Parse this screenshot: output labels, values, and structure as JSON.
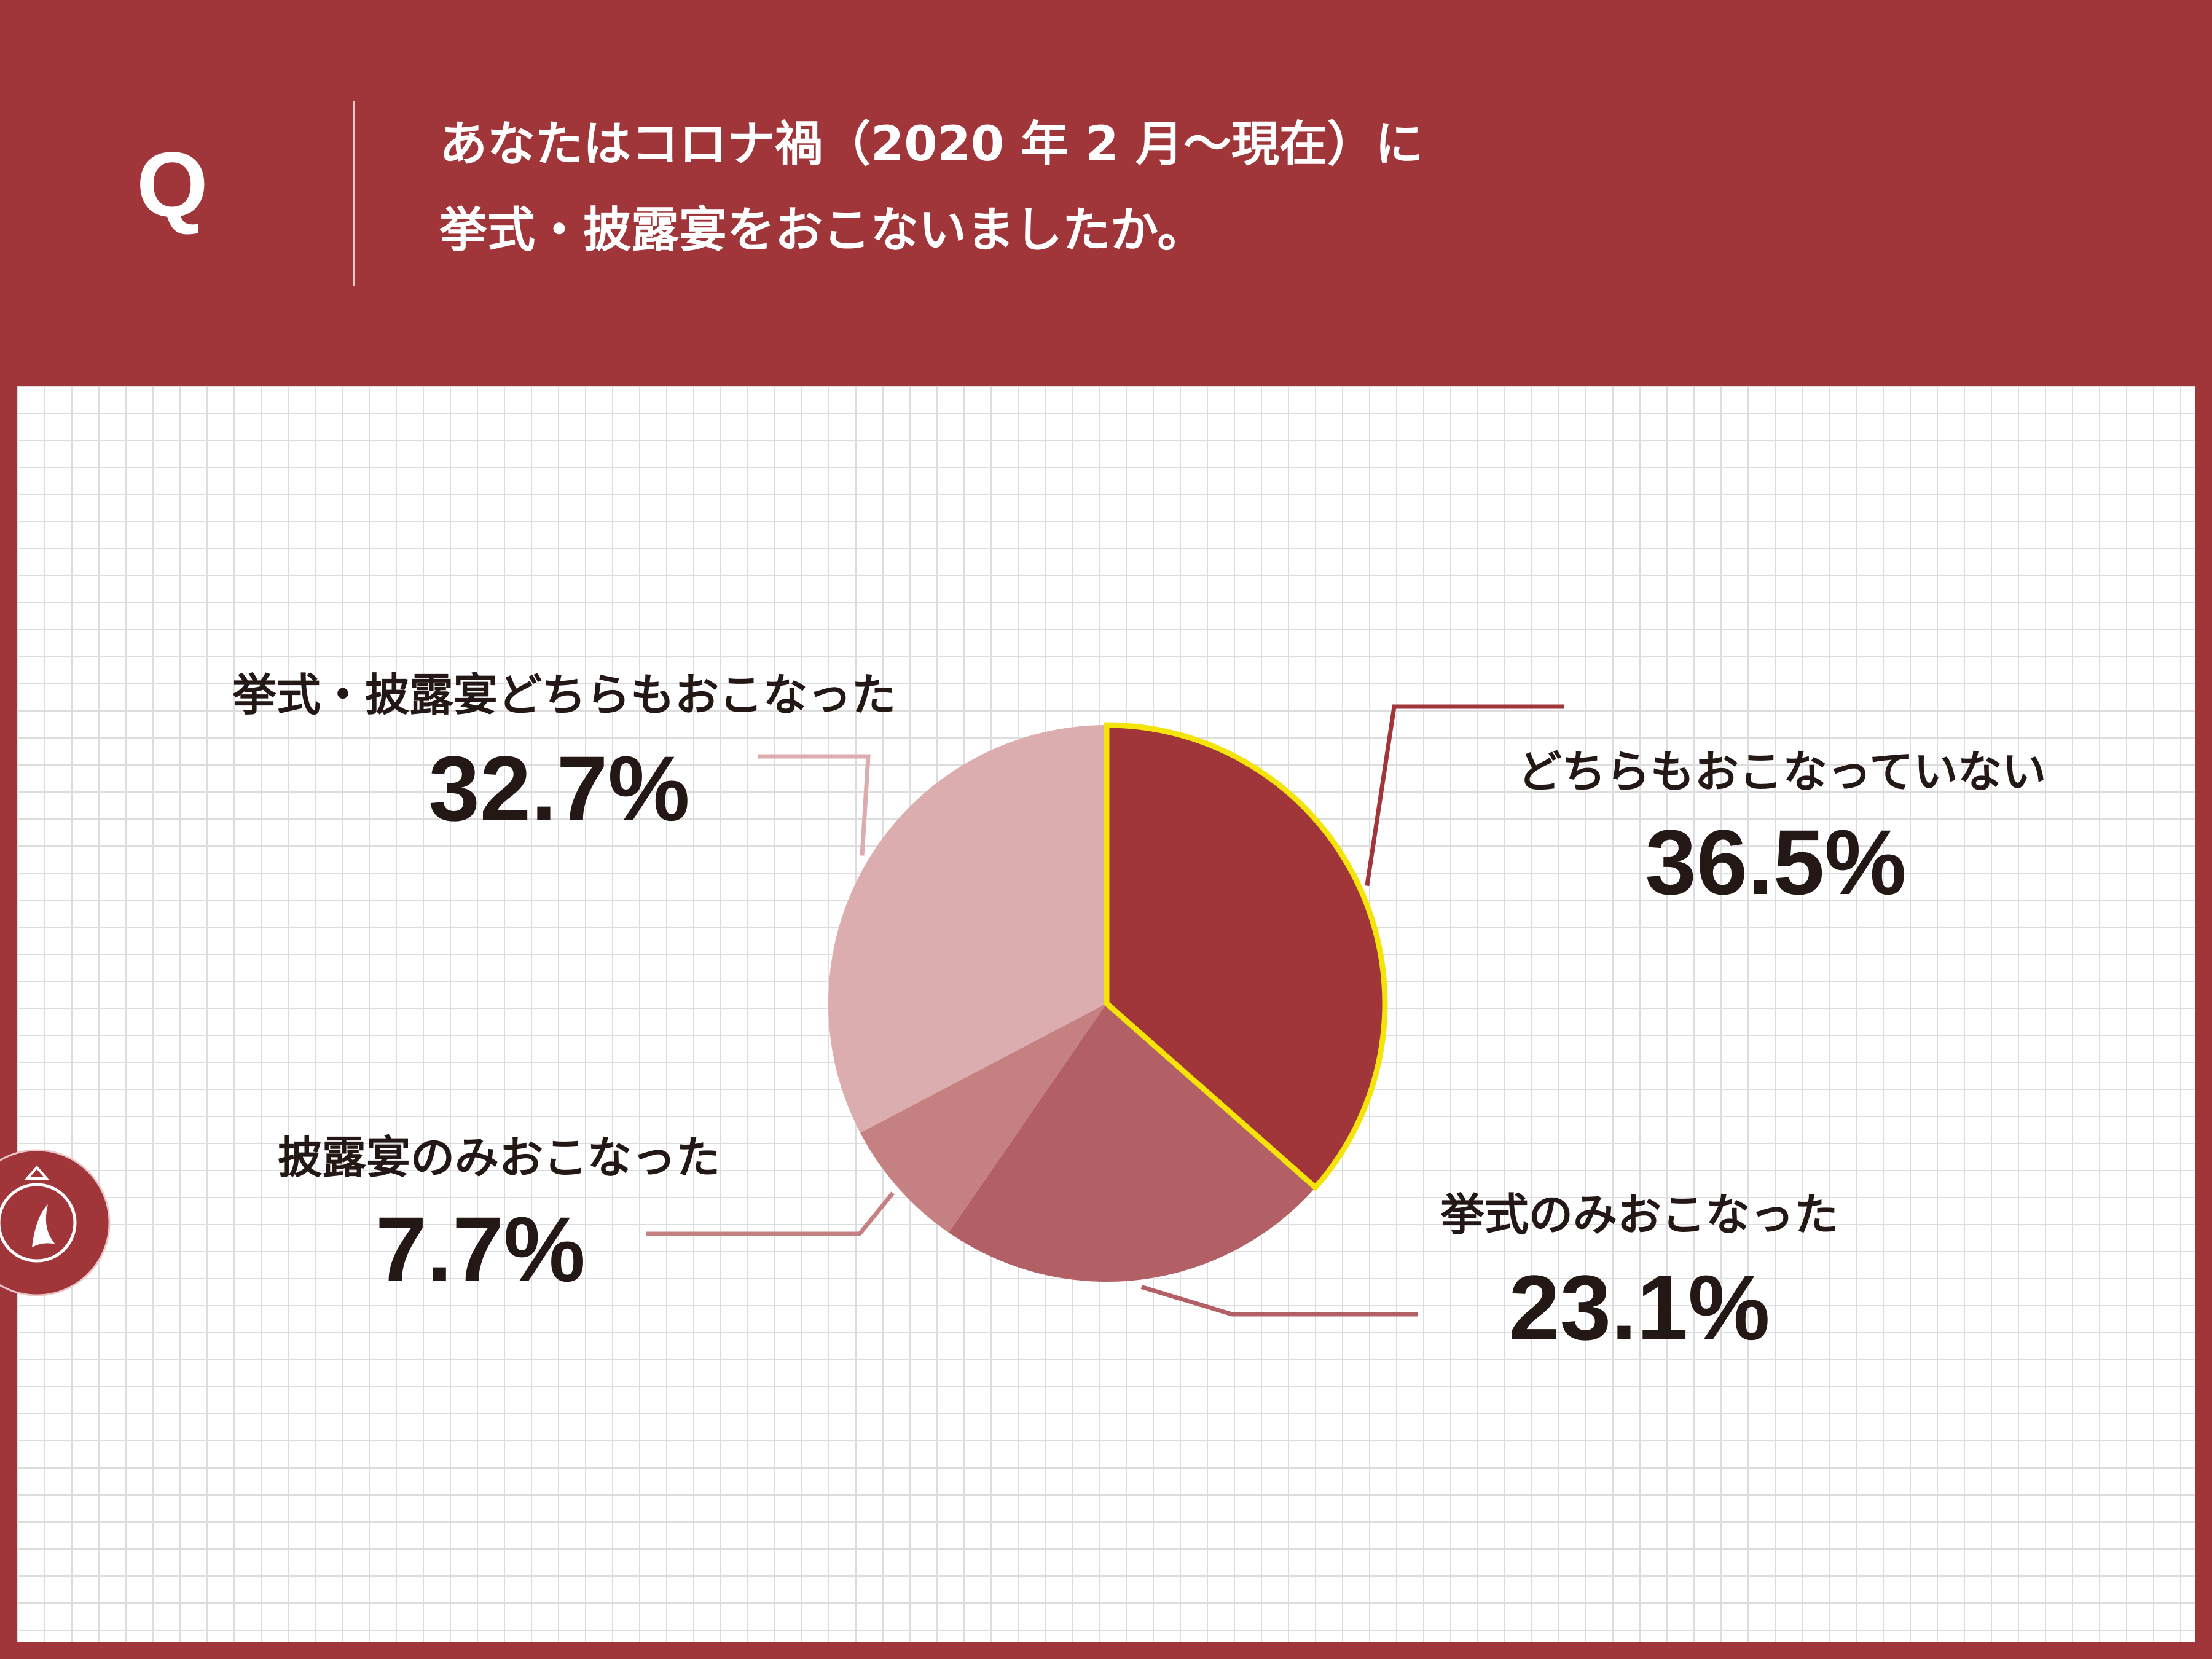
{
  "header": {
    "q_mark": "Q",
    "question_line_1": "あなたはコロナ禍（2020 年 2 月～現在）に",
    "question_line_2": "挙式・披露宴をおこないましたか。"
  },
  "colors": {
    "brand": "#a0353a",
    "highlight_outline": "#f4e40a",
    "grid": "#dddddd",
    "text": "#231815"
  },
  "chart_data": {
    "type": "pie",
    "title": "",
    "start_angle_deg": 0,
    "direction": "clockwise",
    "slices": [
      {
        "label": "どちらもおこなっていない",
        "value": 36.5,
        "display": "36.5%",
        "color": "#a0353a",
        "highlight": true
      },
      {
        "label": "挙式のみおこなった",
        "value": 23.1,
        "display": "23.1%",
        "color": "#b35f66",
        "highlight": false
      },
      {
        "label": "披露宴のみおこなった",
        "value": 7.7,
        "display": "7.7%",
        "color": "#c58081",
        "highlight": false
      },
      {
        "label": "挙式・披露宴どちらもおこなった",
        "value": 32.7,
        "display": "32.7%",
        "color": "#dcadae",
        "highlight": false
      }
    ]
  }
}
